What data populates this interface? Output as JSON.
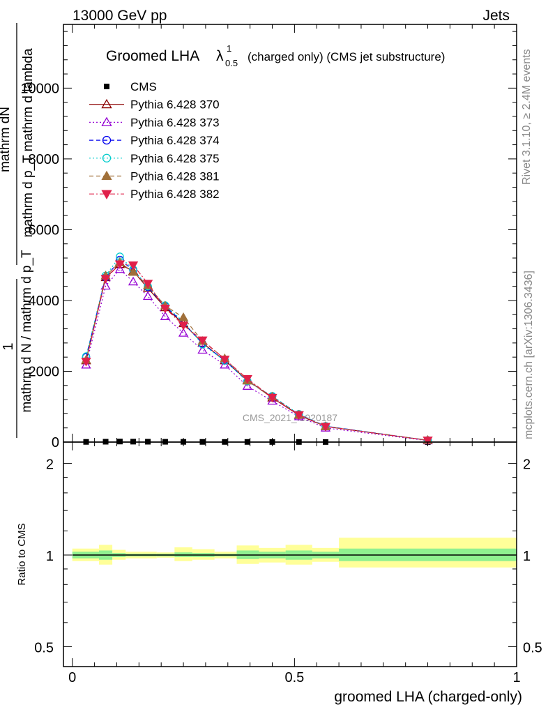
{
  "header": {
    "left": "13000 GeV pp",
    "right": "Jets"
  },
  "side_labels": {
    "rivet": "Rivet 3.1.10, ≥ 2.4M events",
    "mcplots": "mcplots.cern.ch [arXiv:1306.3436]"
  },
  "chart_data": [
    {
      "type": "line",
      "title": "Groomed LHA",
      "title_math": "λ",
      "title_sup": "1",
      "title_sub": "0.5",
      "title_suffix": "(charged only) (CMS jet substructure)",
      "ylabel_numer": "mathrm dN",
      "ylabel_denom": "mathrm d p_T mathrm d lambda",
      "ylabel_left": "1",
      "ylabel_left_denom": "mathrm d N / mathrm d p_T",
      "watermark": "CMS_2021_I1920187",
      "ylim": [
        0,
        11800
      ],
      "y_ticks": [
        0,
        2000,
        4000,
        6000,
        8000,
        10000
      ],
      "y_tick_labels": [
        "0",
        "2000",
        "4000",
        "6000",
        "8000",
        "10000"
      ],
      "xlim": [
        -0.02,
        1.0
      ],
      "legend_placement": "top-left",
      "x": [
        0.031,
        0.075,
        0.107,
        0.137,
        0.17,
        0.209,
        0.25,
        0.293,
        0.343,
        0.394,
        0.45,
        0.51,
        0.57,
        0.8
      ],
      "series": [
        {
          "name": "CMS",
          "color": "#000000",
          "marker": "square-filled",
          "dash": "none",
          "values": [
            5,
            10,
            15,
            12,
            10,
            8,
            6,
            5,
            4,
            4,
            3,
            3,
            2,
            1
          ]
        },
        {
          "name": "Pythia 6.428 370",
          "color": "#8b0000",
          "marker": "triangle-open",
          "dash": "solid",
          "values": [
            2300,
            4650,
            5020,
            4830,
            4350,
            3800,
            3350,
            2800,
            2300,
            1750,
            1250,
            760,
            440,
            50
          ]
        },
        {
          "name": "Pythia 6.428 373",
          "color": "#9400d3",
          "marker": "triangle-open",
          "dash": "dotted",
          "values": [
            2180,
            4410,
            4880,
            4530,
            4120,
            3550,
            3080,
            2600,
            2180,
            1580,
            1160,
            720,
            400,
            40
          ]
        },
        {
          "name": "Pythia 6.428 374",
          "color": "#0000ee",
          "marker": "circle-open",
          "dash": "dashed",
          "values": [
            2400,
            4650,
            5150,
            4860,
            4380,
            3840,
            3370,
            2780,
            2310,
            1720,
            1290,
            780,
            450,
            50
          ]
        },
        {
          "name": "Pythia 6.428 375",
          "color": "#00cccc",
          "marker": "circle-open",
          "dash": "dotted",
          "values": [
            2420,
            4700,
            5240,
            4880,
            4400,
            3860,
            3400,
            2760,
            2300,
            1720,
            1300,
            790,
            450,
            50
          ]
        },
        {
          "name": "Pythia 6.428 381",
          "color": "#a0703a",
          "marker": "triangle-filled",
          "dash": "dashed",
          "values": [
            2320,
            4700,
            5080,
            4800,
            4420,
            3850,
            3520,
            2850,
            2360,
            1730,
            1280,
            770,
            440,
            50
          ]
        },
        {
          "name": "Pythia 6.428 382",
          "color": "#e0204a",
          "marker": "triangle-down-filled",
          "dash": "dashdot",
          "values": [
            2280,
            4620,
            5030,
            5000,
            4480,
            3780,
            3300,
            2880,
            2340,
            1790,
            1260,
            770,
            440,
            50
          ]
        }
      ]
    },
    {
      "type": "area",
      "ylabel": "Ratio to CMS",
      "xlabel": "groomed LHA (charged-only)",
      "ylim": [
        0.43,
        2.35
      ],
      "log_y": true,
      "y_ticks": [
        0.5,
        1,
        2
      ],
      "y_tick_labels": [
        "0.5",
        "1",
        "2"
      ],
      "xlim": [
        -0.02,
        1.0
      ],
      "x_ticks": [
        0,
        0.5,
        1
      ],
      "x_tick_labels": [
        "0",
        "0.5",
        "1"
      ],
      "colors": {
        "inner_band": "#90f090",
        "outer_band": "#ffff99",
        "reference_line": "#000000"
      },
      "bins": [
        {
          "x0": 0.0,
          "x1": 0.06,
          "inner": [
            0.975,
            1.025
          ],
          "outer": [
            0.955,
            1.05
          ]
        },
        {
          "x0": 0.06,
          "x1": 0.09,
          "inner": [
            0.965,
            1.035
          ],
          "outer": [
            0.93,
            1.08
          ]
        },
        {
          "x0": 0.09,
          "x1": 0.12,
          "inner": [
            0.985,
            1.015
          ],
          "outer": [
            0.965,
            1.04
          ]
        },
        {
          "x0": 0.12,
          "x1": 0.155,
          "inner": [
            0.99,
            1.01
          ],
          "outer": [
            0.975,
            1.025
          ]
        },
        {
          "x0": 0.155,
          "x1": 0.19,
          "inner": [
            0.99,
            1.01
          ],
          "outer": [
            0.975,
            1.025
          ]
        },
        {
          "x0": 0.19,
          "x1": 0.23,
          "inner": [
            0.99,
            1.01
          ],
          "outer": [
            0.98,
            1.02
          ]
        },
        {
          "x0": 0.23,
          "x1": 0.27,
          "inner": [
            0.985,
            1.02
          ],
          "outer": [
            0.955,
            1.06
          ]
        },
        {
          "x0": 0.27,
          "x1": 0.32,
          "inner": [
            0.985,
            1.015
          ],
          "outer": [
            0.965,
            1.045
          ]
        },
        {
          "x0": 0.32,
          "x1": 0.37,
          "inner": [
            0.99,
            1.01
          ],
          "outer": [
            0.975,
            1.025
          ]
        },
        {
          "x0": 0.37,
          "x1": 0.42,
          "inner": [
            0.97,
            1.035
          ],
          "outer": [
            0.935,
            1.075
          ]
        },
        {
          "x0": 0.42,
          "x1": 0.48,
          "inner": [
            0.975,
            1.025
          ],
          "outer": [
            0.945,
            1.055
          ]
        },
        {
          "x0": 0.48,
          "x1": 0.54,
          "inner": [
            0.965,
            1.035
          ],
          "outer": [
            0.93,
            1.08
          ]
        },
        {
          "x0": 0.54,
          "x1": 0.6,
          "inner": [
            0.975,
            1.025
          ],
          "outer": [
            0.95,
            1.055
          ]
        },
        {
          "x0": 0.6,
          "x1": 1.0,
          "inner": [
            0.955,
            1.05
          ],
          "outer": [
            0.91,
            1.14
          ]
        }
      ]
    }
  ]
}
